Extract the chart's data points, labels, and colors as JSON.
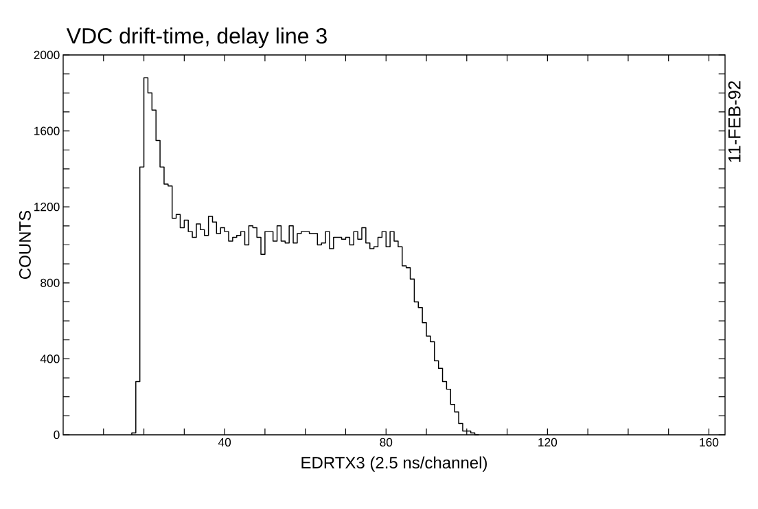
{
  "chart_data": {
    "type": "histogram",
    "title": "VDC drift-time, delay line 3",
    "xlabel": "EDRTX3 (2.5 ns/channel)",
    "ylabel": "COUNTS",
    "annotations": [
      "11-FEB-92"
    ],
    "color": "#000000",
    "bins": [
      17,
      18,
      19,
      20,
      21,
      22,
      23,
      24,
      25,
      26,
      27,
      28,
      29,
      30,
      31,
      32,
      33,
      34,
      35,
      36,
      37,
      38,
      39,
      40,
      41,
      42,
      43,
      44,
      45,
      46,
      47,
      48,
      49,
      50,
      51,
      52,
      53,
      54,
      55,
      56,
      57,
      58,
      59,
      60,
      61,
      62,
      63,
      64,
      65,
      66,
      67,
      68,
      69,
      70,
      71,
      72,
      73,
      74,
      75,
      76,
      77,
      78,
      79,
      80,
      81,
      82,
      83,
      84,
      85,
      86,
      87,
      88,
      89,
      90,
      91,
      92,
      93,
      94,
      95,
      96,
      97,
      98,
      99,
      100,
      101,
      102,
      103
    ],
    "values": [
      10,
      280,
      1410,
      1880,
      1800,
      1710,
      1550,
      1410,
      1320,
      1310,
      1140,
      1160,
      1090,
      1130,
      1070,
      1040,
      1110,
      1080,
      1050,
      1150,
      1120,
      1060,
      1090,
      1070,
      1020,
      1040,
      1050,
      1070,
      1000,
      1100,
      1090,
      1040,
      950,
      1070,
      1070,
      1020,
      1100,
      1020,
      1010,
      1100,
      1010,
      1060,
      1070,
      1070,
      1060,
      1060,
      1000,
      1010,
      1070,
      980,
      1040,
      1040,
      1030,
      1040,
      1000,
      1070,
      1030,
      1090,
      1010,
      980,
      990,
      1040,
      1070,
      990,
      1070,
      1020,
      990,
      890,
      880,
      820,
      700,
      670,
      590,
      520,
      490,
      390,
      350,
      280,
      240,
      160,
      120,
      60,
      20,
      20,
      10,
      0
    ],
    "xlim": [
      0,
      164
    ],
    "ylim": [
      0,
      2000
    ],
    "xticks": [
      {
        "value": 10,
        "label": null
      },
      {
        "value": 20,
        "label": null
      },
      {
        "value": 30,
        "label": null
      },
      40,
      {
        "value": 50,
        "label": null
      },
      {
        "value": 60,
        "label": null
      },
      {
        "value": 70,
        "label": null
      },
      80,
      {
        "value": 90,
        "label": null
      },
      {
        "value": 100,
        "label": null
      },
      {
        "value": 110,
        "label": null
      },
      120,
      {
        "value": 130,
        "label": null
      },
      {
        "value": 140,
        "label": null
      },
      {
        "value": 150,
        "label": null
      },
      160
    ],
    "yticks": [
      0,
      {
        "value": 100,
        "label": null
      },
      {
        "value": 200,
        "label": null
      },
      {
        "value": 300,
        "label": null
      },
      400,
      {
        "value": 500,
        "label": null
      },
      {
        "value": 600,
        "label": null
      },
      {
        "value": 700,
        "label": null
      },
      800,
      {
        "value": 900,
        "label": null
      },
      {
        "value": 1000,
        "label": null
      },
      {
        "value": 1100,
        "label": null
      },
      1200,
      {
        "value": 1300,
        "label": null
      },
      {
        "value": 1400,
        "label": null
      },
      {
        "value": 1500,
        "label": null
      },
      1600,
      {
        "value": 1700,
        "label": null
      },
      {
        "value": 1800,
        "label": null
      },
      {
        "value": 1900,
        "label": null
      },
      2000
    ]
  }
}
